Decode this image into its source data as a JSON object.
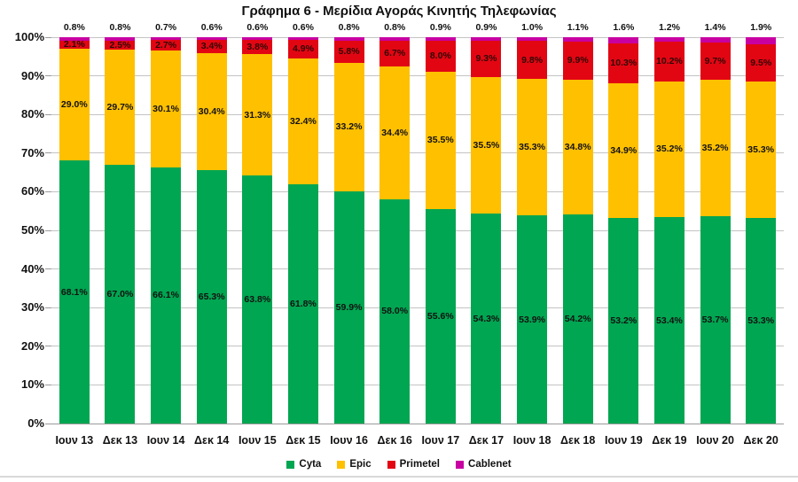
{
  "title": "Γράφημα 6 - Μερίδια Αγοράς Κινητής Τηλεφωνίας",
  "chart_data": {
    "type": "bar",
    "variant": "stacked-percent",
    "grid": true,
    "legend_position": "bottom",
    "ylim": [
      0,
      100
    ],
    "yticks": [
      "0%",
      "10%",
      "20%",
      "30%",
      "40%",
      "50%",
      "60%",
      "70%",
      "80%",
      "90%",
      "100%"
    ],
    "categories": [
      "Ιουν 13",
      "Δεκ 13",
      "Ιουν 14",
      "Δεκ 14",
      "Ιουν 15",
      "Δεκ 15",
      "Ιουν 16",
      "Δεκ 16",
      "Ιουν 17",
      "Δεκ 17",
      "Ιουν 18",
      "Δεκ 18",
      "Ιουν 19",
      "Δεκ 19",
      "Ιουν 20",
      "Δεκ 20"
    ],
    "series": [
      {
        "name": "Cyta",
        "color": "#00A651",
        "values": [
          68.1,
          67.0,
          66.1,
          65.3,
          63.8,
          61.8,
          59.9,
          58.0,
          55.6,
          54.3,
          53.9,
          54.2,
          53.2,
          53.4,
          53.7,
          53.3
        ]
      },
      {
        "name": "Epic",
        "color": "#FFC000",
        "values": [
          29.0,
          29.7,
          30.1,
          30.4,
          31.3,
          32.4,
          33.2,
          34.4,
          35.5,
          35.5,
          35.3,
          34.8,
          34.9,
          35.2,
          35.2,
          35.3
        ]
      },
      {
        "name": "Primetel",
        "color": "#E20613",
        "values": [
          2.1,
          2.5,
          2.7,
          3.4,
          3.8,
          4.9,
          5.8,
          6.7,
          8.0,
          9.3,
          9.8,
          9.9,
          10.3,
          10.2,
          9.7,
          9.5
        ]
      },
      {
        "name": "Cablenet",
        "color": "#C800A1",
        "values": [
          0.8,
          0.8,
          0.7,
          0.6,
          0.6,
          0.6,
          0.8,
          0.8,
          0.9,
          0.9,
          1.0,
          1.1,
          1.6,
          1.2,
          1.4,
          1.9
        ]
      }
    ],
    "label_suffix": "%",
    "gridline_color": "#C3C3C3"
  }
}
